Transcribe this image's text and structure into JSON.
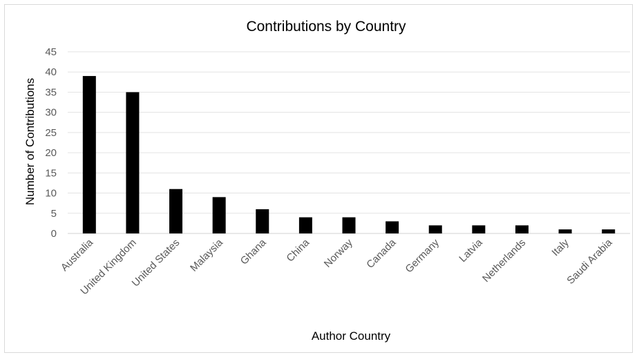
{
  "chart_data": {
    "type": "bar",
    "title": "Contributions by Country",
    "xlabel": "Author Country",
    "ylabel": "Number of Contributions",
    "categories": [
      "Australia",
      "United Kingdom",
      "United States",
      "Malaysia",
      "Ghana",
      "China",
      "Norway",
      "Canada",
      "Germany",
      "Latvia",
      "Netherlands",
      "Italy",
      "Saudi Arabia"
    ],
    "values": [
      39,
      35,
      11,
      9,
      6,
      4,
      4,
      3,
      2,
      2,
      2,
      1,
      1
    ],
    "ylim": [
      0,
      45
    ],
    "yticks": [
      0,
      5,
      10,
      15,
      20,
      25,
      30,
      35,
      40,
      45
    ],
    "grid": true,
    "legend": "none",
    "bar_color": "#000000"
  }
}
